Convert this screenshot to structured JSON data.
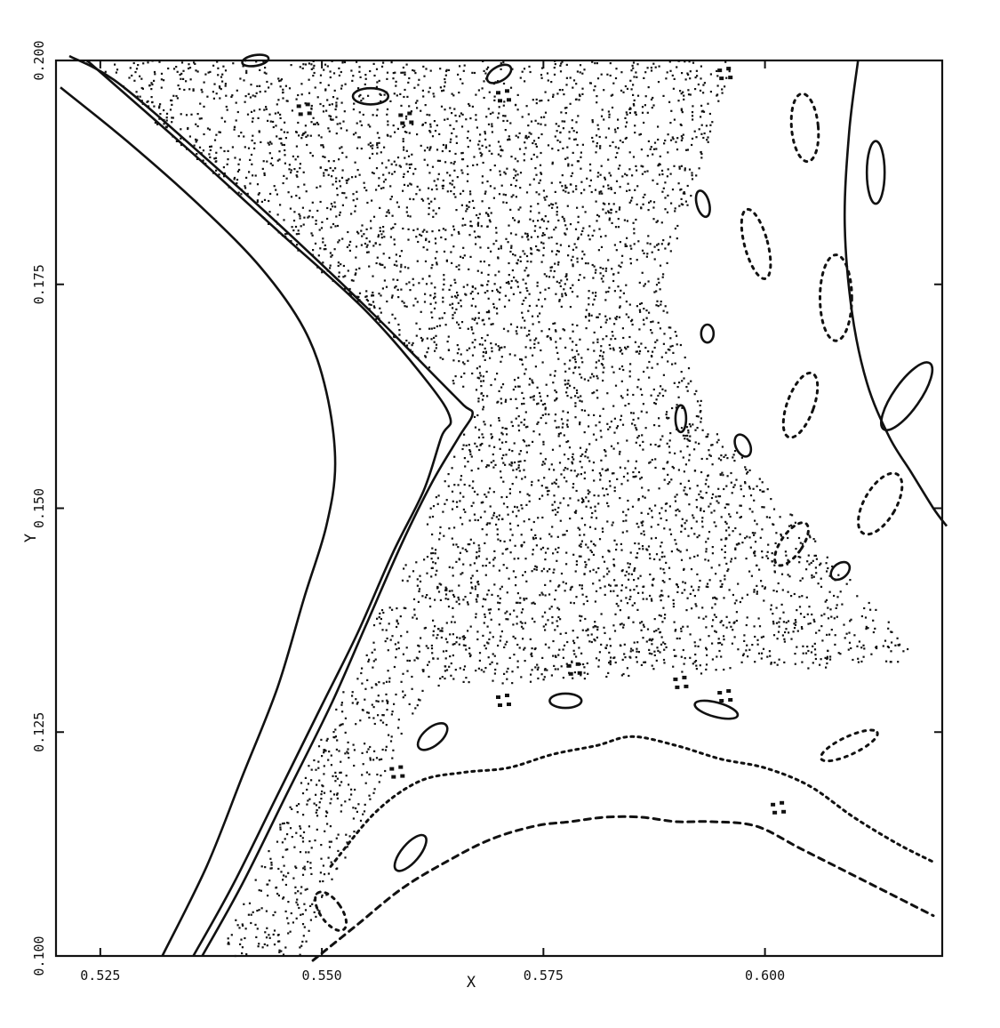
{
  "chart_data": {
    "type": "scatter",
    "title": "",
    "xlabel": "X",
    "ylabel": "Y",
    "xlim": [
      0.52,
      0.62
    ],
    "ylim": [
      0.1,
      0.2
    ],
    "x_ticks": [
      0.525,
      0.55,
      0.575,
      0.6
    ],
    "x_tick_labels": [
      "0.525",
      "0.550",
      "0.575",
      "0.600"
    ],
    "y_ticks": [
      0.1,
      0.125,
      0.15,
      0.175,
      0.2
    ],
    "y_tick_labels": [
      "0.100",
      "0.125",
      "0.150",
      "0.175",
      "0.200"
    ],
    "grid": false,
    "legend": "none",
    "color": "#111111",
    "curves": [
      {
        "x": [
          0.532,
          0.537,
          0.541,
          0.545,
          0.548,
          0.5505,
          0.5515,
          0.5505,
          0.548,
          0.543,
          0.536,
          0.528,
          0.5205
        ],
        "y": [
          0.1,
          0.11,
          0.12,
          0.13,
          0.14,
          0.148,
          0.155,
          0.163,
          0.17,
          0.177,
          0.184,
          0.191,
          0.197
        ]
      },
      {
        "x": [
          0.5355,
          0.54,
          0.545,
          0.55,
          0.554,
          0.558,
          0.5615,
          0.5635,
          0.5645,
          0.562,
          0.555,
          0.545,
          0.535,
          0.5235
        ],
        "y": [
          0.1,
          0.108,
          0.118,
          0.128,
          0.136,
          0.145,
          0.152,
          0.158,
          0.16,
          0.164,
          0.172,
          0.181,
          0.19,
          0.2
        ]
      },
      {
        "x": [
          0.5365,
          0.541,
          0.546,
          0.551,
          0.555,
          0.559,
          0.5625,
          0.5655,
          0.567,
          0.566,
          0.563,
          0.556,
          0.547,
          0.537,
          0.527,
          0.5215
        ],
        "y": [
          0.1,
          0.108,
          0.118,
          0.128,
          0.137,
          0.146,
          0.153,
          0.158,
          0.1605,
          0.1615,
          0.1645,
          0.1715,
          0.18,
          0.189,
          0.1975,
          0.2005
        ]
      },
      {
        "x": [
          0.6105,
          0.6095,
          0.609,
          0.6098,
          0.6115,
          0.614,
          0.6165,
          0.619,
          0.6205
        ],
        "y": [
          0.2,
          0.192,
          0.182,
          0.172,
          0.164,
          0.158,
          0.154,
          0.15,
          0.148
        ]
      }
    ],
    "dotted_curves": [
      {
        "x": [
          0.551,
          0.556,
          0.561,
          0.566,
          0.571,
          0.576,
          0.581,
          0.585,
          0.59,
          0.595,
          0.6,
          0.605,
          0.61,
          0.615,
          0.619
        ],
        "y": [
          0.11,
          0.116,
          0.1195,
          0.1205,
          0.121,
          0.1225,
          0.1235,
          0.1245,
          0.1235,
          0.122,
          0.121,
          0.119,
          0.1155,
          0.1125,
          0.1105
        ]
      },
      {
        "x": [
          0.549,
          0.554,
          0.559,
          0.564,
          0.569,
          0.574,
          0.578,
          0.582,
          0.586,
          0.59,
          0.594,
          0.599,
          0.604,
          0.609,
          0.614,
          0.619
        ],
        "y": [
          0.0995,
          0.1035,
          0.1075,
          0.1105,
          0.113,
          0.1145,
          0.115,
          0.1155,
          0.1155,
          0.115,
          0.115,
          0.1145,
          0.112,
          0.1095,
          0.107,
          0.1045
        ]
      }
    ],
    "islands": [
      {
        "cx": 0.5625,
        "cy": 0.1245,
        "rx": 0.002,
        "ry": 0.001,
        "rot": 40
      },
      {
        "cx": 0.56,
        "cy": 0.1115,
        "rx": 0.0025,
        "ry": 0.001,
        "rot": 50
      },
      {
        "cx": 0.5775,
        "cy": 0.1285,
        "rx": 0.0018,
        "ry": 0.0008,
        "rot": 0
      },
      {
        "cx": 0.5945,
        "cy": 0.1275,
        "rx": 0.0025,
        "ry": 0.0008,
        "rot": -15
      },
      {
        "cx": 0.5555,
        "cy": 0.196,
        "rx": 0.002,
        "ry": 0.0009,
        "rot": 0
      },
      {
        "cx": 0.57,
        "cy": 0.1985,
        "rx": 0.0015,
        "ry": 0.0008,
        "rot": 30
      },
      {
        "cx": 0.5425,
        "cy": 0.2,
        "rx": 0.0015,
        "ry": 0.0006,
        "rot": 10
      },
      {
        "cx": 0.6125,
        "cy": 0.1875,
        "rx": 0.001,
        "ry": 0.0035,
        "rot": 0
      },
      {
        "cx": 0.616,
        "cy": 0.1625,
        "rx": 0.0015,
        "ry": 0.0045,
        "rot": -35
      },
      {
        "cx": 0.593,
        "cy": 0.184,
        "rx": 0.0007,
        "ry": 0.0015,
        "rot": 15
      },
      {
        "cx": 0.5935,
        "cy": 0.1695,
        "rx": 0.0007,
        "ry": 0.001,
        "rot": 0
      },
      {
        "cx": 0.5975,
        "cy": 0.157,
        "rx": 0.0008,
        "ry": 0.0013,
        "rot": 25
      },
      {
        "cx": 0.6085,
        "cy": 0.143,
        "rx": 0.0012,
        "ry": 0.0008,
        "rot": 40
      },
      {
        "cx": 0.5905,
        "cy": 0.16,
        "rx": 0.0006,
        "ry": 0.0015,
        "rot": 0
      }
    ],
    "dotted_islands": [
      {
        "cx": 0.6045,
        "cy": 0.1925,
        "rx": 0.0015,
        "ry": 0.0038,
        "rot": 5
      },
      {
        "cx": 0.608,
        "cy": 0.1735,
        "rx": 0.0018,
        "ry": 0.0048,
        "rot": 0
      },
      {
        "cx": 0.599,
        "cy": 0.1795,
        "rx": 0.0013,
        "ry": 0.004,
        "rot": 15
      },
      {
        "cx": 0.604,
        "cy": 0.1615,
        "rx": 0.0015,
        "ry": 0.0038,
        "rot": -20
      },
      {
        "cx": 0.613,
        "cy": 0.1505,
        "rx": 0.0018,
        "ry": 0.0038,
        "rot": -30
      },
      {
        "cx": 0.603,
        "cy": 0.146,
        "rx": 0.0012,
        "ry": 0.0028,
        "rot": -35
      },
      {
        "cx": 0.6095,
        "cy": 0.1235,
        "rx": 0.0035,
        "ry": 0.001,
        "rot": 25
      },
      {
        "cx": 0.551,
        "cy": 0.105,
        "rx": 0.0012,
        "ry": 0.0025,
        "rot": 35
      }
    ],
    "dot_clusters": [
      {
        "x": 0.548,
        "y": 0.1945
      },
      {
        "x": 0.5595,
        "y": 0.1935
      },
      {
        "x": 0.5705,
        "y": 0.196
      },
      {
        "x": 0.5705,
        "y": 0.1285
      },
      {
        "x": 0.5785,
        "y": 0.132
      },
      {
        "x": 0.5905,
        "y": 0.1305
      },
      {
        "x": 0.5955,
        "y": 0.129
      },
      {
        "x": 0.5585,
        "y": 0.1205
      },
      {
        "x": 0.6015,
        "y": 0.1165
      },
      {
        "x": 0.5955,
        "y": 0.1985
      }
    ],
    "chaotic_sea": {
      "point_count": 5200,
      "boundaries": {
        "left_x_at_bottom": 0.5375,
        "left_x_at_cusp": 0.5665,
        "cusp_y": 0.161,
        "left_x_at_top": 0.5225,
        "right_upper_x_at_top": 0.5965,
        "right_upper_x_at_mid": 0.5885,
        "right_lower_x_at_mid": 0.5935,
        "right_lower_x_at_bottom": 0.6205,
        "bottom_y_right": 0.13
      }
    }
  }
}
